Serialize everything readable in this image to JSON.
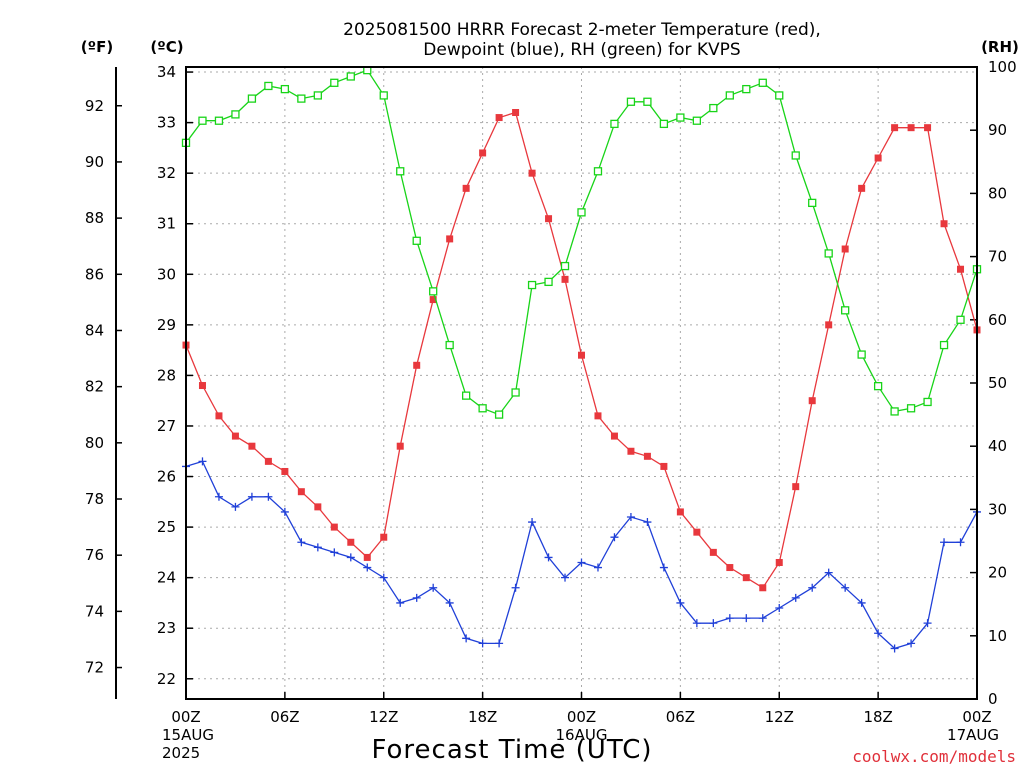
{
  "chart_data": {
    "type": "line",
    "title_lines": [
      "2025081500 HRRR Forecast 2-meter Temperature (red),",
      "Dewpoint (blue), RH (green) for KVPS"
    ],
    "xlabel": "Forecast Time (UTC)",
    "credit": "coolwx.com/models",
    "units": {
      "fahrenheit": "(ºF)",
      "celsius": "(ºC)",
      "rh": "(RH)"
    },
    "x_range_hours": [
      0,
      48
    ],
    "x_ticks": [
      {
        "hour": 0,
        "lines": [
          "00Z",
          "15AUG",
          "2025"
        ]
      },
      {
        "hour": 6,
        "lines": [
          "06Z"
        ]
      },
      {
        "hour": 12,
        "lines": [
          "12Z"
        ]
      },
      {
        "hour": 18,
        "lines": [
          "18Z"
        ]
      },
      {
        "hour": 24,
        "lines": [
          "00Z",
          "16AUG"
        ]
      },
      {
        "hour": 30,
        "lines": [
          "06Z"
        ]
      },
      {
        "hour": 36,
        "lines": [
          "12Z"
        ]
      },
      {
        "hour": 42,
        "lines": [
          "18Z"
        ]
      },
      {
        "hour": 48,
        "lines": [
          "00Z",
          "17AUG"
        ]
      }
    ],
    "celsius_axis": {
      "range": [
        21.6,
        34.1
      ],
      "ticks": [
        22,
        23,
        24,
        25,
        26,
        27,
        28,
        29,
        30,
        31,
        32,
        33,
        34
      ]
    },
    "fahrenheit_axis": {
      "ticks": [
        72,
        74,
        76,
        78,
        80,
        82,
        84,
        86,
        88,
        90,
        92
      ]
    },
    "rh_axis": {
      "range": [
        0,
        100
      ],
      "ticks": [
        0,
        10,
        20,
        30,
        40,
        50,
        60,
        70,
        80,
        90,
        100
      ]
    },
    "grid": true,
    "series": [
      {
        "name": "Temperature",
        "axis": "celsius",
        "color": "#e8383d",
        "marker": "filled-square",
        "values": [
          28.6,
          27.8,
          27.2,
          26.8,
          26.6,
          26.3,
          26.1,
          25.7,
          25.4,
          25.0,
          24.7,
          24.4,
          24.8,
          26.6,
          28.2,
          29.5,
          30.7,
          31.7,
          32.4,
          33.1,
          33.2,
          32.0,
          31.1,
          29.9,
          28.4,
          27.2,
          26.8,
          26.5,
          26.4,
          26.2,
          25.3,
          24.9,
          24.5,
          24.2,
          24.0,
          23.8,
          24.3,
          25.8,
          27.5,
          29.0,
          30.5,
          31.7,
          32.3,
          32.9,
          32.9,
          32.9,
          31.0,
          30.1,
          28.9
        ]
      },
      {
        "name": "Dewpoint",
        "axis": "celsius",
        "color": "#2040d8",
        "marker": "plus",
        "values": [
          26.2,
          26.3,
          25.6,
          25.4,
          25.6,
          25.6,
          25.3,
          24.7,
          24.6,
          24.5,
          24.4,
          24.2,
          24.0,
          23.5,
          23.6,
          23.8,
          23.5,
          22.8,
          22.7,
          22.7,
          23.8,
          25.1,
          24.4,
          24.0,
          24.3,
          24.2,
          24.8,
          25.2,
          25.1,
          24.2,
          23.5,
          23.1,
          23.1,
          23.2,
          23.2,
          23.2,
          23.4,
          23.6,
          23.8,
          24.1,
          23.8,
          23.5,
          22.9,
          22.6,
          22.7,
          23.1,
          24.7,
          24.7,
          25.3
        ]
      },
      {
        "name": "RH",
        "axis": "rh",
        "color": "#18d418",
        "marker": "open-square",
        "values": [
          88,
          91.5,
          91.5,
          92.5,
          95,
          97,
          96.5,
          95,
          95.5,
          97.5,
          98.5,
          99.5,
          95.5,
          83.5,
          72.5,
          64.5,
          56,
          48,
          46,
          45,
          48.5,
          65.5,
          66,
          68.5,
          77,
          83.5,
          91,
          94.5,
          94.5,
          91,
          92,
          91.5,
          93.5,
          95.5,
          96.5,
          97.5,
          95.5,
          86,
          78.5,
          70.5,
          61.5,
          54.5,
          49.5,
          45.5,
          46,
          47,
          56,
          60,
          68
        ]
      }
    ]
  }
}
